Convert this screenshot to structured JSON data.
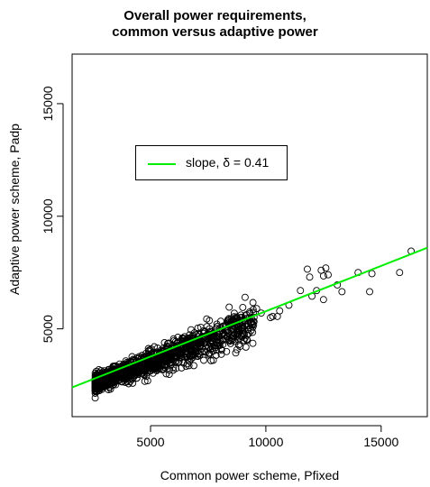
{
  "title_line1": "Overall power requirements,",
  "title_line2": "common versus adaptive power",
  "chart_data": {
    "type": "scatter",
    "title": "Overall power requirements, common versus adaptive power",
    "xlabel": "Common power scheme, Pfixed",
    "ylabel": "Adaptive power scheme, Padp",
    "xlim": [
      1600,
      17000
    ],
    "ylim": [
      1100,
      17200
    ],
    "xticks": [
      5000,
      10000,
      15000
    ],
    "yticks": [
      5000,
      10000,
      15000
    ],
    "xtick_labels": [
      "5000",
      "10000",
      "15000"
    ],
    "ytick_labels": [
      "5000",
      "10000",
      "15000"
    ],
    "grid": false,
    "legend_position": "upper-left",
    "legend_label": "slope,  δ = 0.41",
    "marker": "open-circle",
    "points_color": "#000000",
    "fit_line": {
      "slope": 0.41,
      "x": [
        1600,
        17000
      ],
      "y": [
        2400,
        8600
      ],
      "color": "#00ee00"
    },
    "cloud": {
      "n": 1400,
      "x_range": [
        2600,
        9500
      ],
      "center_slope": 0.395,
      "center_intercept": 1520,
      "spread": 220
    },
    "points": [
      {
        "x": 12400,
        "y": 7600
      },
      {
        "x": 12600,
        "y": 7700
      },
      {
        "x": 12700,
        "y": 7400
      },
      {
        "x": 12500,
        "y": 7350
      },
      {
        "x": 14000,
        "y": 7500
      },
      {
        "x": 14600,
        "y": 7450
      },
      {
        "x": 15800,
        "y": 7500
      },
      {
        "x": 16300,
        "y": 8450
      },
      {
        "x": 11800,
        "y": 7650
      },
      {
        "x": 11900,
        "y": 7300
      },
      {
        "x": 11500,
        "y": 6700
      },
      {
        "x": 12000,
        "y": 6450
      },
      {
        "x": 12500,
        "y": 6300
      },
      {
        "x": 13100,
        "y": 6950
      },
      {
        "x": 13300,
        "y": 6650
      },
      {
        "x": 14500,
        "y": 6650
      },
      {
        "x": 12200,
        "y": 6700
      },
      {
        "x": 11000,
        "y": 6050
      },
      {
        "x": 10600,
        "y": 5800
      },
      {
        "x": 10300,
        "y": 5550
      },
      {
        "x": 10500,
        "y": 5550
      },
      {
        "x": 9600,
        "y": 5900
      },
      {
        "x": 9100,
        "y": 6400
      },
      {
        "x": 9000,
        "y": 5950
      },
      {
        "x": 8900,
        "y": 5500
      },
      {
        "x": 8700,
        "y": 5300
      },
      {
        "x": 9300,
        "y": 5750
      },
      {
        "x": 9800,
        "y": 5700
      },
      {
        "x": 10200,
        "y": 5500
      },
      {
        "x": 8400,
        "y": 5450
      }
    ]
  }
}
